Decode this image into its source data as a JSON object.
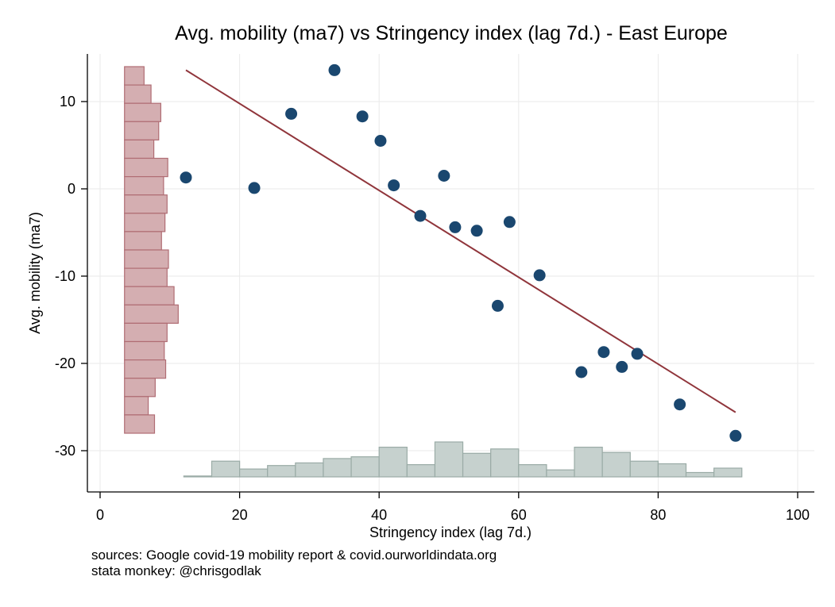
{
  "chart_data": {
    "type": "scatter",
    "title": "Avg. mobility (ma7) vs Stringency index (lag 7d.) - East Europe",
    "xlabel": "Stringency index (lag 7d.)",
    "ylabel": "Avg. mobility (ma7)",
    "xlim": [
      -2,
      102
    ],
    "ylim": [
      -34.5,
      15.5
    ],
    "xticks": [
      0,
      20,
      40,
      60,
      80,
      100
    ],
    "yticks": [
      10,
      0,
      -10,
      -20,
      -30
    ],
    "grid": true,
    "points": [
      {
        "x": 12.3,
        "y": 1.3
      },
      {
        "x": 22.1,
        "y": 0.1
      },
      {
        "x": 27.4,
        "y": 8.6
      },
      {
        "x": 33.6,
        "y": 13.6
      },
      {
        "x": 37.6,
        "y": 8.3
      },
      {
        "x": 40.2,
        "y": 5.5
      },
      {
        "x": 42.1,
        "y": 0.4
      },
      {
        "x": 45.9,
        "y": -3.1
      },
      {
        "x": 49.3,
        "y": 1.5
      },
      {
        "x": 50.9,
        "y": -4.4
      },
      {
        "x": 54.0,
        "y": -4.8
      },
      {
        "x": 57.0,
        "y": -13.4
      },
      {
        "x": 58.7,
        "y": -3.8
      },
      {
        "x": 63.0,
        "y": -9.9
      },
      {
        "x": 69.0,
        "y": -21.0
      },
      {
        "x": 72.2,
        "y": -18.7
      },
      {
        "x": 74.8,
        "y": -20.4
      },
      {
        "x": 77.0,
        "y": -18.9
      },
      {
        "x": 83.1,
        "y": -24.7
      },
      {
        "x": 91.1,
        "y": -28.3
      }
    ],
    "fit_line": {
      "x1": 12.3,
      "y1": 13.6,
      "x2": 91.1,
      "y2": -25.6
    },
    "y_histogram": {
      "base_x": 3.5,
      "bin_height": 2.1,
      "top": 14.0,
      "lengths": [
        2.8,
        3.8,
        5.2,
        4.9,
        4.2,
        6.2,
        5.6,
        6.1,
        5.8,
        5.3,
        6.3,
        6.1,
        7.1,
        7.7,
        6.1,
        5.7,
        5.9,
        4.4,
        3.4,
        4.3
      ]
    },
    "x_histogram": {
      "base_y": -33.0,
      "bin_width": 4.0,
      "start": 12.0,
      "heights": [
        0.1,
        1.8,
        0.9,
        1.3,
        1.6,
        2.1,
        2.3,
        3.4,
        1.4,
        4.0,
        2.7,
        3.2,
        1.4,
        0.8,
        3.4,
        2.8,
        1.8,
        1.5,
        0.5,
        1.0
      ]
    },
    "colors": {
      "points": "#1a476f",
      "fit_line": "#90353b",
      "y_hist_fill": "#d4aeb1",
      "y_hist_stroke": "#b06d74",
      "x_hist_fill": "#c6d1ce",
      "x_hist_stroke": "#9aaba6",
      "grid": "#eaeaea"
    }
  },
  "notes": {
    "sources": "sources: Google covid-19 mobility report & covid.ourworldindata.org",
    "author": "stata monkey: @chrisgodlak"
  }
}
